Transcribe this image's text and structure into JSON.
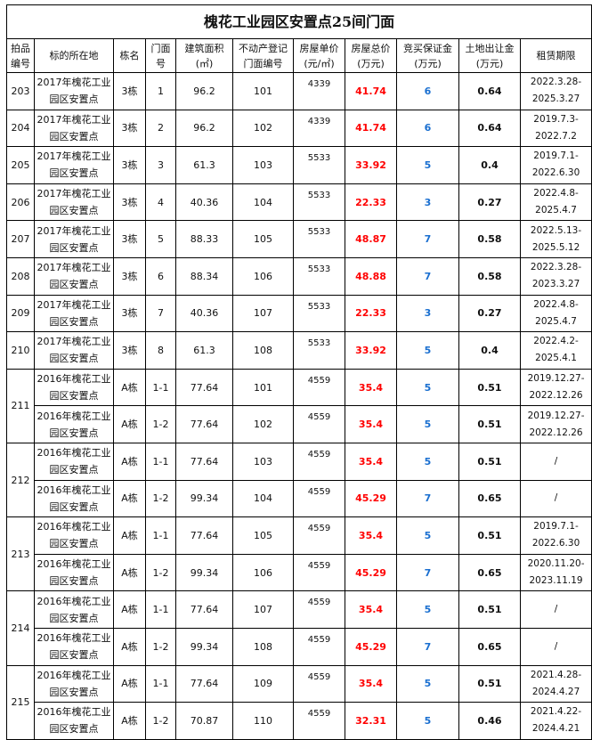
{
  "title": "槐花工业园区安置点25间门面",
  "headers": [
    "拍品\n编号",
    "标的所在地",
    "栋名",
    "门面\n号",
    "建筑面积\n(㎡)",
    "不动产登记\n门面编号",
    "房屋单价\n(元/㎡)",
    "房屋总价\n(万元)",
    "竞买保证金\n(万元)",
    "土地出让金\n(万元)",
    "租赁期限"
  ],
  "lots": [
    {
      "id": "203",
      "rows": [
        {
          "loc": "2017年槐花工业园区安置点",
          "bldg": "3栋",
          "door": "1",
          "area": "96.2",
          "reg": "101",
          "unit": "4339",
          "total": "41.74",
          "deposit": "6",
          "land": "0.64",
          "lease": [
            "2022.3.28-",
            "2025.3.27"
          ]
        }
      ]
    },
    {
      "id": "204",
      "rows": [
        {
          "loc": "2017年槐花工业园区安置点",
          "bldg": "3栋",
          "door": "2",
          "area": "96.2",
          "reg": "102",
          "unit": "4339",
          "total": "41.74",
          "deposit": "6",
          "land": "0.64",
          "lease": [
            "2019.7.3-",
            "2022.7.2"
          ]
        }
      ]
    },
    {
      "id": "205",
      "rows": [
        {
          "loc": "2017年槐花工业园区安置点",
          "bldg": "3栋",
          "door": "3",
          "area": "61.3",
          "reg": "103",
          "unit": "5533",
          "total": "33.92",
          "deposit": "5",
          "land": "0.4",
          "lease": [
            "2019.7.1-",
            "2022.6.30"
          ]
        }
      ]
    },
    {
      "id": "206",
      "rows": [
        {
          "loc": "2017年槐花工业园区安置点",
          "bldg": "3栋",
          "door": "4",
          "area": "40.36",
          "reg": "104",
          "unit": "5533",
          "total": "22.33",
          "deposit": "3",
          "land": "0.27",
          "lease": [
            "2022.4.8-",
            "2025.4.7"
          ]
        }
      ]
    },
    {
      "id": "207",
      "rows": [
        {
          "loc": "2017年槐花工业园区安置点",
          "bldg": "3栋",
          "door": "5",
          "area": "88.33",
          "reg": "105",
          "unit": "5533",
          "total": "48.87",
          "deposit": "7",
          "land": "0.58",
          "lease": [
            "2022.5.13-",
            "2025.5.12"
          ]
        }
      ]
    },
    {
      "id": "208",
      "rows": [
        {
          "loc": "2017年槐花工业园区安置点",
          "bldg": "3栋",
          "door": "6",
          "area": "88.34",
          "reg": "106",
          "unit": "5533",
          "total": "48.88",
          "deposit": "7",
          "land": "0.58",
          "lease": [
            "2022.3.28-",
            "2023.3.27"
          ]
        }
      ]
    },
    {
      "id": "209",
      "rows": [
        {
          "loc": "2017年槐花工业园区安置点",
          "bldg": "3栋",
          "door": "7",
          "area": "40.36",
          "reg": "107",
          "unit": "5533",
          "total": "22.33",
          "deposit": "3",
          "land": "0.27",
          "lease": [
            "2022.4.8-",
            "2025.4.7"
          ]
        }
      ]
    },
    {
      "id": "210",
      "rows": [
        {
          "loc": "2017年槐花工业园区安置点",
          "bldg": "3栋",
          "door": "8",
          "area": "61.3",
          "reg": "108",
          "unit": "5533",
          "total": "33.92",
          "deposit": "5",
          "land": "0.4",
          "lease": [
            "2022.4.2-",
            "2025.4.1"
          ]
        }
      ]
    },
    {
      "id": "211",
      "rows": [
        {
          "loc": "2016年槐花工业园区安置点",
          "bldg": "A栋",
          "door": "1-1",
          "area": "77.64",
          "reg": "101",
          "unit": "4559",
          "total": "35.4",
          "deposit": "5",
          "land": "0.51",
          "lease": [
            "2019.12.27-",
            "2022.12.26"
          ]
        },
        {
          "loc": "2016年槐花工业园区安置点",
          "bldg": "A栋",
          "door": "1-2",
          "area": "77.64",
          "reg": "102",
          "unit": "4559",
          "total": "35.4",
          "deposit": "5",
          "land": "0.51",
          "lease": [
            "2019.12.27-",
            "2022.12.26"
          ]
        }
      ]
    },
    {
      "id": "212",
      "rows": [
        {
          "loc": "2016年槐花工业园区安置点",
          "bldg": "A栋",
          "door": "1-1",
          "area": "77.64",
          "reg": "103",
          "unit": "4559",
          "total": "35.4",
          "deposit": "5",
          "land": "0.51",
          "lease": [
            "/"
          ]
        },
        {
          "loc": "2016年槐花工业园区安置点",
          "bldg": "A栋",
          "door": "1-2",
          "area": "99.34",
          "reg": "104",
          "unit": "4559",
          "total": "45.29",
          "deposit": "7",
          "land": "0.65",
          "lease": [
            "/"
          ]
        }
      ]
    },
    {
      "id": "213",
      "rows": [
        {
          "loc": "2016年槐花工业园区安置点",
          "bldg": "A栋",
          "door": "1-1",
          "area": "77.64",
          "reg": "105",
          "unit": "4559",
          "total": "35.4",
          "deposit": "5",
          "land": "0.51",
          "lease": [
            "2019.7.1-",
            "2022.6.30"
          ]
        },
        {
          "loc": "2016年槐花工业园区安置点",
          "bldg": "A栋",
          "door": "1-2",
          "area": "99.34",
          "reg": "106",
          "unit": "4559",
          "total": "45.29",
          "deposit": "7",
          "land": "0.65",
          "lease": [
            "2020.11.20-",
            "2023.11.19"
          ]
        }
      ]
    },
    {
      "id": "214",
      "rows": [
        {
          "loc": "2016年槐花工业园区安置点",
          "bldg": "A栋",
          "door": "1-1",
          "area": "77.64",
          "reg": "107",
          "unit": "4559",
          "total": "35.4",
          "deposit": "5",
          "land": "0.51",
          "lease": [
            "/"
          ]
        },
        {
          "loc": "2016年槐花工业园区安置点",
          "bldg": "A栋",
          "door": "1-2",
          "area": "99.34",
          "reg": "108",
          "unit": "4559",
          "total": "45.29",
          "deposit": "7",
          "land": "0.65",
          "lease": [
            "/"
          ]
        }
      ]
    },
    {
      "id": "215",
      "rows": [
        {
          "loc": "2016年槐花工业园区安置点",
          "bldg": "A栋",
          "door": "1-1",
          "area": "77.64",
          "reg": "109",
          "unit": "4559",
          "total": "35.4",
          "deposit": "5",
          "land": "0.51",
          "lease": [
            "2021.4.28-",
            "2024.4.27"
          ]
        },
        {
          "loc": "2016年槐花工业园区安置点",
          "bldg": "A栋",
          "door": "1-2",
          "area": "70.87",
          "reg": "110",
          "unit": "4559",
          "total": "32.31",
          "deposit": "5",
          "land": "0.46",
          "lease": [
            "2021.4.22-",
            "2024.4.21"
          ]
        }
      ]
    }
  ],
  "colors": {
    "total": "#ff0000",
    "deposit": "#1a6fd0"
  }
}
